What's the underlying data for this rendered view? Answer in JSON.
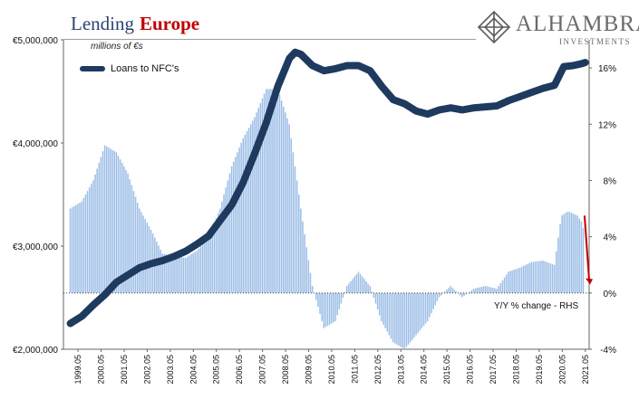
{
  "title": {
    "main": "Lending",
    "accent": "Europe"
  },
  "units": "millions of €s",
  "logo": {
    "name": "ALHAMBRA",
    "sub": "INVESTMENTS"
  },
  "legend": {
    "series": "Loans to NFC's"
  },
  "rhs_label": "Y/Y % change - RHS",
  "colors": {
    "line": "#1f3a5f",
    "bars": "#9bbde6",
    "arrow": "#c00000",
    "title": "#2b4470",
    "accent": "#c00000"
  },
  "chart_data": {
    "type": "bar",
    "title": "Lending Europe",
    "left_axis": {
      "ylim": [
        2000000,
        5000000
      ],
      "ticks": [
        2000000,
        3000000,
        4000000,
        5000000
      ],
      "tick_labels": [
        "€2,000,000",
        "€3,000,000",
        "€4,000,000",
        "€5,000,000"
      ]
    },
    "right_axis": {
      "ylim": [
        -4,
        18
      ],
      "ticks": [
        -4,
        0,
        4,
        8,
        12,
        16
      ],
      "tick_labels": [
        "-4%",
        "0%",
        "4%",
        "8%",
        "12%",
        "16%"
      ]
    },
    "x_tick_labels": [
      "1999.05",
      "2000.05",
      "2001.05",
      "2002.05",
      "2003.05",
      "2004.05",
      "2005.05",
      "2006.05",
      "2007.05",
      "2008.05",
      "2009.05",
      "2010.05",
      "2011.05",
      "2012.05",
      "2013.05",
      "2014.05",
      "2015.05",
      "2016.05",
      "2017.05",
      "2018.05",
      "2019.05",
      "2020.05",
      "2021.05"
    ],
    "line_series": {
      "name": "Loans to NFC's",
      "axis": "left",
      "points": [
        [
          1999.0,
          2250000
        ],
        [
          1999.5,
          2320000
        ],
        [
          2000.0,
          2430000
        ],
        [
          2000.5,
          2530000
        ],
        [
          2001.0,
          2650000
        ],
        [
          2001.5,
          2720000
        ],
        [
          2002.0,
          2790000
        ],
        [
          2002.5,
          2830000
        ],
        [
          2003.0,
          2860000
        ],
        [
          2003.5,
          2900000
        ],
        [
          2004.0,
          2950000
        ],
        [
          2004.5,
          3020000
        ],
        [
          2005.0,
          3100000
        ],
        [
          2005.5,
          3250000
        ],
        [
          2006.0,
          3400000
        ],
        [
          2006.5,
          3620000
        ],
        [
          2007.0,
          3900000
        ],
        [
          2007.5,
          4200000
        ],
        [
          2008.0,
          4550000
        ],
        [
          2008.5,
          4820000
        ],
        [
          2008.75,
          4880000
        ],
        [
          2009.0,
          4860000
        ],
        [
          2009.5,
          4750000
        ],
        [
          2010.0,
          4700000
        ],
        [
          2010.5,
          4720000
        ],
        [
          2011.0,
          4750000
        ],
        [
          2011.5,
          4750000
        ],
        [
          2012.0,
          4700000
        ],
        [
          2012.5,
          4550000
        ],
        [
          2013.0,
          4420000
        ],
        [
          2013.5,
          4380000
        ],
        [
          2014.0,
          4310000
        ],
        [
          2014.5,
          4280000
        ],
        [
          2015.0,
          4320000
        ],
        [
          2015.5,
          4340000
        ],
        [
          2016.0,
          4320000
        ],
        [
          2016.5,
          4340000
        ],
        [
          2017.0,
          4350000
        ],
        [
          2017.5,
          4360000
        ],
        [
          2018.0,
          4410000
        ],
        [
          2018.5,
          4450000
        ],
        [
          2019.0,
          4490000
        ],
        [
          2019.5,
          4530000
        ],
        [
          2020.0,
          4560000
        ],
        [
          2020.4,
          4740000
        ],
        [
          2020.8,
          4750000
        ],
        [
          2021.2,
          4770000
        ],
        [
          2021.33,
          4780000
        ]
      ]
    },
    "bar_series": {
      "name": "Y/Y % change - RHS",
      "axis": "right",
      "points": [
        [
          1999.0,
          6.0
        ],
        [
          1999.5,
          6.5
        ],
        [
          2000.0,
          8.0
        ],
        [
          2000.5,
          10.5
        ],
        [
          2001.0,
          10.0
        ],
        [
          2001.5,
          8.5
        ],
        [
          2002.0,
          6.0
        ],
        [
          2002.5,
          4.5
        ],
        [
          2003.0,
          2.8
        ],
        [
          2003.5,
          2.6
        ],
        [
          2004.0,
          2.5
        ],
        [
          2004.5,
          3.0
        ],
        [
          2005.0,
          4.0
        ],
        [
          2005.5,
          6.0
        ],
        [
          2006.0,
          9.0
        ],
        [
          2006.5,
          11.0
        ],
        [
          2007.0,
          12.5
        ],
        [
          2007.5,
          14.5
        ],
        [
          2008.0,
          14.5
        ],
        [
          2008.5,
          12.0
        ],
        [
          2009.0,
          6.0
        ],
        [
          2009.5,
          0.5
        ],
        [
          2010.0,
          -2.5
        ],
        [
          2010.5,
          -2.0
        ],
        [
          2011.0,
          0.5
        ],
        [
          2011.5,
          1.5
        ],
        [
          2012.0,
          0.5
        ],
        [
          2012.5,
          -2.0
        ],
        [
          2013.0,
          -3.5
        ],
        [
          2013.5,
          -4.0
        ],
        [
          2014.0,
          -3.0
        ],
        [
          2014.5,
          -2.0
        ],
        [
          2015.0,
          -0.3
        ],
        [
          2015.5,
          0.5
        ],
        [
          2016.0,
          -0.3
        ],
        [
          2016.5,
          0.3
        ],
        [
          2017.0,
          0.5
        ],
        [
          2017.5,
          0.3
        ],
        [
          2018.0,
          1.5
        ],
        [
          2018.5,
          1.8
        ],
        [
          2019.0,
          2.2
        ],
        [
          2019.5,
          2.3
        ],
        [
          2020.0,
          2.0
        ],
        [
          2020.3,
          5.5
        ],
        [
          2020.6,
          5.8
        ],
        [
          2021.0,
          5.5
        ],
        [
          2021.2,
          5.0
        ],
        [
          2021.33,
          4.0
        ]
      ]
    },
    "annotation": {
      "type": "arrow",
      "from": [
        2021.3,
        5.5
      ],
      "to": [
        2021.5,
        0.6
      ]
    }
  }
}
